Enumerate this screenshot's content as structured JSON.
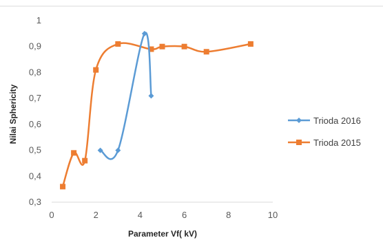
{
  "chart_data": {
    "type": "line",
    "title": "",
    "xlabel": "Parameter Vf( kV)",
    "ylabel": "Nilai Sphericity",
    "xlim": [
      0,
      10
    ],
    "ylim": [
      0.3,
      1.0
    ],
    "x_ticks": [
      "0",
      "2",
      "4",
      "6",
      "8",
      "10"
    ],
    "y_ticks": [
      "0,3",
      "0,4",
      "0,5",
      "0,6",
      "0,7",
      "0,8",
      "0,9",
      "1"
    ],
    "grid": false,
    "legend_position": "right",
    "series": [
      {
        "name": "Trioda 2016",
        "color": "#5b9bd5",
        "marker": "diamond",
        "points": [
          [
            2.2,
            0.5
          ],
          [
            3.0,
            0.5
          ],
          [
            4.2,
            0.95
          ],
          [
            4.5,
            0.71
          ]
        ]
      },
      {
        "name": "Trioda 2015",
        "color": "#ed7d31",
        "marker": "square",
        "points": [
          [
            0.5,
            0.36
          ],
          [
            1.0,
            0.49
          ],
          [
            1.5,
            0.46
          ],
          [
            2.0,
            0.81
          ],
          [
            3.0,
            0.91
          ],
          [
            4.5,
            0.89
          ],
          [
            5.0,
            0.9
          ],
          [
            6.0,
            0.9
          ],
          [
            7.0,
            0.88
          ],
          [
            9.0,
            0.91
          ]
        ]
      }
    ]
  }
}
